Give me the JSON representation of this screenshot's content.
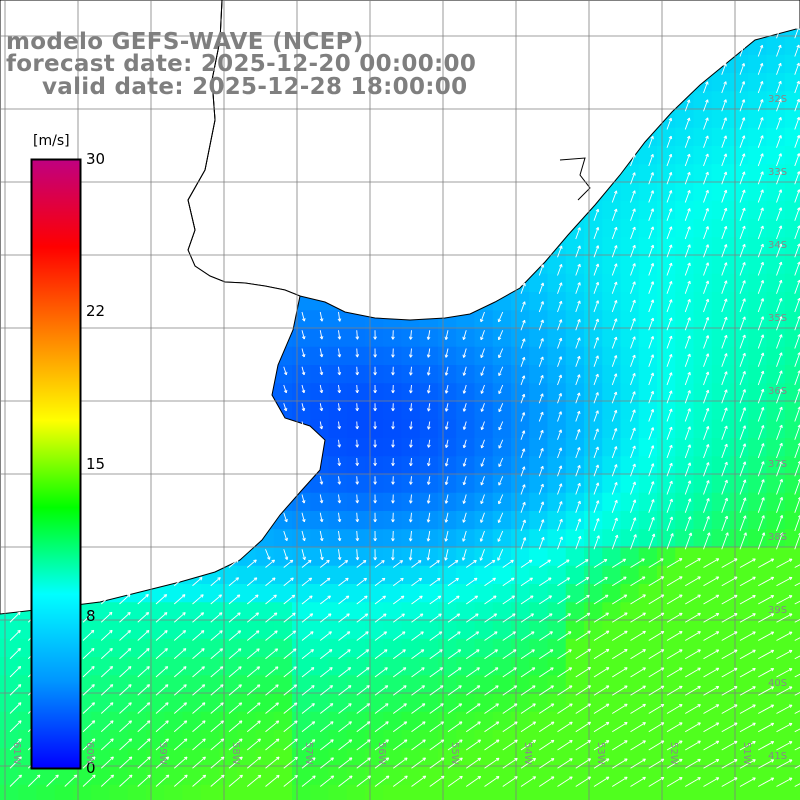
{
  "titles": {
    "line1": "modelo GEFS-WAVE (NCEP)",
    "line2": "forecast date: 2025-12-20 00:00:00",
    "line3": "valid date: 2025-12-28 18:00:00"
  },
  "colorbar": {
    "unit": "[m/s]",
    "ticks": [
      "30",
      "22",
      "15",
      "8",
      "0"
    ],
    "tick_values": [
      30,
      22,
      15,
      8,
      0
    ],
    "min": 0,
    "max": 30,
    "colors": [
      "#0000ff",
      "#0096ff",
      "#00ffff",
      "#00ff00",
      "#ffff00",
      "#ff8000",
      "#ff0000",
      "#c00080"
    ]
  },
  "grid": {
    "lat_labels": [
      "32S",
      "33S",
      "34S",
      "35S",
      "36S",
      "37S",
      "38S",
      "39S",
      "40S",
      "41S"
    ],
    "lon_labels": [
      "61W",
      "60W",
      "59W",
      "58W",
      "57W",
      "56W",
      "55W",
      "54W",
      "53W",
      "52W",
      "51W"
    ]
  },
  "colors": {
    "land": "#ffffff",
    "coast": "#000000",
    "grid": "#7f7f7f",
    "arrow": "#ffffff",
    "title": "#7f7f7f"
  }
}
